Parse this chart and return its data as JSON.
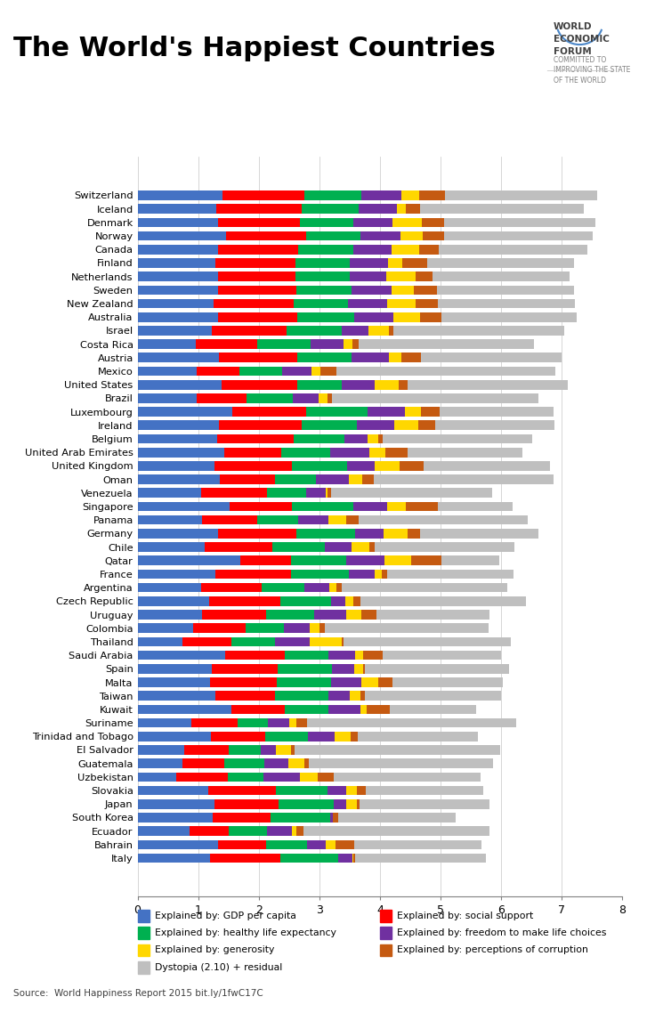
{
  "title": "The World's Happiest Countries",
  "source": "Source:  World Happiness Report 2015 bit.ly/1fwC17C",
  "countries": [
    "Switzerland",
    "Iceland",
    "Denmark",
    "Norway",
    "Canada",
    "Finland",
    "Netherlands",
    "Sweden",
    "New Zealand",
    "Australia",
    "Israel",
    "Costa Rica",
    "Austria",
    "Mexico",
    "United States",
    "Brazil",
    "Luxembourg",
    "Ireland",
    "Belgium",
    "United Arab Emirates",
    "United Kingdom",
    "Oman",
    "Venezuela",
    "Singapore",
    "Panama",
    "Germany",
    "Chile",
    "Qatar",
    "France",
    "Argentina",
    "Czech Republic",
    "Uruguay",
    "Colombia",
    "Thailand",
    "Saudi Arabia",
    "Spain",
    "Malta",
    "Taiwan",
    "Kuwait",
    "Suriname",
    "Trinidad and Tobago",
    "El Salvador",
    "Guatemala",
    "Uzbekistan",
    "Slovakia",
    "Japan",
    "South Korea",
    "Ecuador",
    "Bahrain",
    "Italy"
  ],
  "gdp": [
    1.39651,
    1.30232,
    1.32548,
    1.459,
    1.32629,
    1.29025,
    1.32944,
    1.33171,
    1.25018,
    1.33358,
    1.22857,
    0.95578,
    1.33723,
    0.97208,
    1.39451,
    0.98124,
    1.56499,
    1.33596,
    1.30782,
    1.42727,
    1.26637,
    1.36011,
    1.04424,
    1.52186,
    1.06426,
    1.32792,
    1.10715,
    1.69042,
    1.27778,
    1.05351,
    1.17898,
    1.06166,
    0.91861,
    0.73799,
    1.44443,
    1.23011,
    1.20228,
    1.29098,
    1.55422,
    0.89162,
    1.21163,
    0.76454,
    0.74553,
    0.63216,
    1.16891,
    1.27074,
    1.24461,
    0.86402,
    1.32376,
    1.19023
  ],
  "social": [
    1.34951,
    1.40223,
    1.36058,
    1.33095,
    1.32261,
    1.31826,
    1.28017,
    1.28907,
    1.31967,
    1.30923,
    1.22393,
    1.02119,
    1.29704,
    0.70522,
    1.24711,
    0.81158,
    1.21108,
    1.36948,
    1.26637,
    0.94676,
    1.28548,
    0.9112,
    1.09562,
    1.02186,
    0.91226,
    1.29937,
    1.12447,
    0.83524,
    1.26038,
    0.99438,
    1.17202,
    1.06427,
    0.86524,
    0.81172,
    0.98853,
    1.08825,
    1.09829,
    0.97839,
    0.8712,
    0.75804,
    0.89012,
    0.73312,
    0.68527,
    0.85145,
    1.11876,
    1.05392,
    0.95774,
    0.63569,
    0.80148,
    1.17121
  ],
  "health": [
    0.94143,
    0.94784,
    0.87464,
    0.88521,
    0.90563,
    0.88911,
    0.89284,
    0.91087,
    0.90837,
    0.93156,
    0.91387,
    0.87567,
    0.89589,
    0.70947,
    0.72926,
    0.7707,
    1.01843,
    0.90937,
    0.83524,
    0.80925,
    0.90943,
    0.67866,
    0.64425,
    1.02295,
    0.66901,
    0.97052,
    0.85857,
    0.91474,
    0.94579,
    0.70774,
    0.84872,
    0.79481,
    0.63544,
    0.72492,
    0.71044,
    0.89543,
    0.88721,
    0.87337,
    0.72492,
    0.49499,
    0.70806,
    0.53657,
    0.65435,
    0.59772,
    0.84483,
    0.91796,
    0.97529,
    0.6404,
    0.66673,
    0.95614
  ],
  "freedom": [
    0.66557,
    0.62877,
    0.64938,
    0.66973,
    0.63297,
    0.64169,
    0.60365,
    0.6598,
    0.63938,
    0.65124,
    0.44012,
    0.55225,
    0.62433,
    0.48181,
    0.54398,
    0.42908,
    0.61766,
    0.61875,
    0.38071,
    0.64157,
    0.45547,
    0.53566,
    0.31844,
    0.54982,
    0.5111,
    0.46662,
    0.44786,
    0.64074,
    0.43616,
    0.40672,
    0.22861,
    0.53001,
    0.41587,
    0.5654,
    0.44701,
    0.35944,
    0.50343,
    0.354,
    0.52375,
    0.36293,
    0.4469,
    0.24252,
    0.4057,
    0.59772,
    0.31678,
    0.19777,
    0.04803,
    0.40357,
    0.31974,
    0.2225
  ],
  "generosity": [
    0.29678,
    0.14145,
    0.48357,
    0.36503,
    0.45811,
    0.23351,
    0.4761,
    0.36262,
    0.47501,
    0.43562,
    0.33667,
    0.14353,
    0.19591,
    0.14574,
    0.40105,
    0.1466,
    0.26027,
    0.3991,
    0.17521,
    0.26475,
    0.41542,
    0.21606,
    0.02677,
    0.31608,
    0.27998,
    0.38687,
    0.28744,
    0.43182,
    0.10763,
    0.12205,
    0.12646,
    0.24147,
    0.1684,
    0.52707,
    0.13628,
    0.14756,
    0.28335,
    0.18206,
    0.10843,
    0.11227,
    0.26676,
    0.2536,
    0.26247,
    0.2928,
    0.17714,
    0.17938,
    0.0,
    0.07178,
    0.1575,
    0.0265
  ],
  "corruption": [
    0.41978,
    0.24145,
    0.36503,
    0.34377,
    0.32957,
    0.41372,
    0.28034,
    0.38834,
    0.36262,
    0.35997,
    0.07785,
    0.10547,
    0.33088,
    0.27489,
    0.14574,
    0.07434,
    0.31986,
    0.28397,
    0.08384,
    0.36071,
    0.38523,
    0.197,
    0.0706,
    0.52069,
    0.20843,
    0.21843,
    0.08714,
    0.49553,
    0.08845,
    0.08728,
    0.11894,
    0.25668,
    0.08956,
    0.02842,
    0.31562,
    0.03787,
    0.23688,
    0.0798,
    0.37395,
    0.18226,
    0.11567,
    0.06576,
    0.06612,
    0.27049,
    0.13867,
    0.03743,
    0.07936,
    0.12332,
    0.31384,
    0.02781
  ],
  "dystopia": [
    2.51738,
    2.70201,
    2.49204,
    2.46531,
    2.45176,
    2.41278,
    2.27394,
    2.2669,
    2.26301,
    2.22907,
    2.81444,
    2.89319,
    2.31914,
    3.60214,
    2.64657,
    3.40656,
    1.87941,
    1.96996,
    2.4574,
    1.90891,
    2.09269,
    2.96822,
    2.65176,
    1.23471,
    2.79593,
    1.9459,
    2.31086,
    0.96056,
    2.0883,
    2.73401,
    2.73861,
    1.8527,
    2.69861,
    2.76426,
    1.96131,
    2.37366,
    1.81957,
    2.24495,
    1.4357,
    3.45069,
    1.97422,
    3.38424,
    3.04733,
    2.42343,
    1.94399,
    2.14944,
    1.94734,
    3.07612,
    2.09048,
    2.15866
  ],
  "colors": {
    "gdp": "#4472C4",
    "social": "#FF0000",
    "health": "#00B050",
    "freedom": "#7030A0",
    "generosity": "#FFD700",
    "corruption": "#C55A11",
    "dystopia": "#BFBFBF"
  },
  "legend_labels": [
    "Explained by: GDP per capita",
    "Explained by: social support",
    "Explained by: healthy life expectancy",
    "Explained by: freedom to make life choices",
    "Explained by: generosity",
    "Explained by: perceptions of corruption",
    "Dystopia (2.10) + residual"
  ],
  "xlim": [
    0,
    8
  ],
  "xticks": [
    0,
    1,
    2,
    3,
    4,
    5,
    6,
    7,
    8
  ],
  "wef_text1": "WORLD\nECONOMIC\nFORUM",
  "wef_text2": "COMMITTED TO\nIMPROVING THE STATE\nOF THE WORLD"
}
